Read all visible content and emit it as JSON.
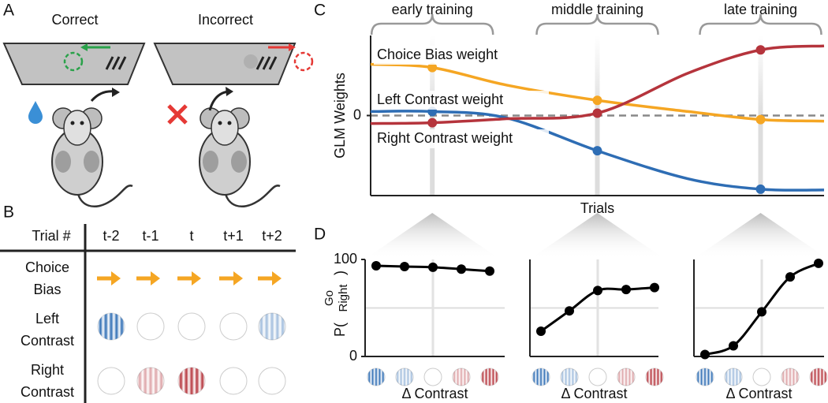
{
  "panel_labels": [
    "A",
    "B",
    "C",
    "D"
  ],
  "panel_a": {
    "labels": [
      "Correct",
      "Incorrect"
    ]
  },
  "panel_b": {
    "header": [
      "Trial #",
      "t-2",
      "t-1",
      "t",
      "t+1",
      "t+2"
    ],
    "rows": [
      {
        "label": [
          "Choice",
          "Bias"
        ],
        "color": "#f5a623"
      },
      {
        "label": [
          "Left",
          "Contrast"
        ],
        "color": "#2e6db4"
      },
      {
        "label": [
          "Right",
          "Contrast"
        ],
        "color": "#b5343c"
      }
    ]
  },
  "chart_data": [
    {
      "type": "line",
      "ylabel": "GLM Weights",
      "xlabel": "Trials",
      "annotations": [
        "early training",
        "middle training",
        "late training"
      ],
      "x": [
        0,
        0.136,
        0.3,
        0.5,
        0.7,
        0.86,
        1.0
      ],
      "x_highlights": [
        0.136,
        0.5,
        0.86
      ],
      "xlim": [
        0,
        1
      ],
      "ylim": [
        -1,
        1
      ],
      "yticks": [
        0
      ],
      "reference_line": 0,
      "series": [
        {
          "name": "Choice Bias weight",
          "color": "#f5a623",
          "values": [
            0.64,
            0.6,
            0.38,
            0.19,
            0.05,
            -0.05,
            -0.07
          ]
        },
        {
          "name": "Left Contrast weight",
          "color": "#2e6db4",
          "values": [
            0.05,
            0.05,
            -0.03,
            -0.44,
            -0.79,
            -0.92,
            -0.93
          ]
        },
        {
          "name": "Right Contrast weight",
          "color": "#b5343c",
          "values": [
            -0.1,
            -0.09,
            -0.04,
            0.03,
            0.53,
            0.82,
            0.87
          ]
        }
      ]
    },
    {
      "type": "line",
      "ylabel": [
        "P(",
        "Go",
        "Right",
        ")"
      ],
      "xlabel": "Δ Contrast",
      "categories": [
        null,
        null,
        null,
        null,
        null
      ],
      "values": [
        93.5,
        92.7,
        92,
        90,
        88
      ],
      "color": "#000000",
      "ylim": [
        0,
        100
      ],
      "yticks": [
        0,
        100
      ],
      "reference_line": 50
    },
    {
      "type": "line",
      "xlabel": "Δ Contrast",
      "categories": [
        null,
        null,
        null,
        null,
        null
      ],
      "values": [
        26,
        47,
        68,
        69,
        71
      ],
      "color": "#000000",
      "ylim": [
        0,
        100
      ],
      "reference_line": 50
    },
    {
      "type": "line",
      "xlabel": "Δ Contrast",
      "categories": [
        null,
        null,
        null,
        null,
        null
      ],
      "values": [
        2,
        11,
        46,
        82,
        96
      ],
      "color": "#000000",
      "ylim": [
        0,
        100
      ],
      "reference_line": 50
    }
  ]
}
